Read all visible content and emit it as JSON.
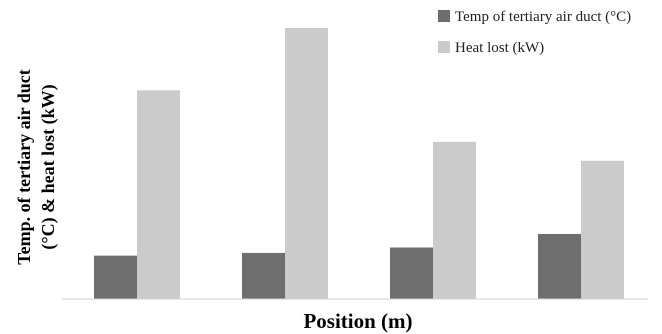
{
  "chart_data": {
    "type": "bar",
    "title": "",
    "xlabel": "Position (m)",
    "ylabel_line1": "Temp. of tertiary air duct",
    "ylabel_line2": "(°C) & heat lost (kW)",
    "ylim": [
      0,
      100
    ],
    "categories": [
      "",
      "",
      "",
      ""
    ],
    "series": [
      {
        "name": "Temp of tertiary air duct (°C)",
        "color": "#6e6e6e",
        "values": [
          16,
          17,
          19,
          24
        ]
      },
      {
        "name": "Heat lost (kW)",
        "color": "#cbcbcb",
        "values": [
          77,
          100,
          58,
          51
        ]
      }
    ],
    "grid": false,
    "legend_position": "top-right"
  }
}
